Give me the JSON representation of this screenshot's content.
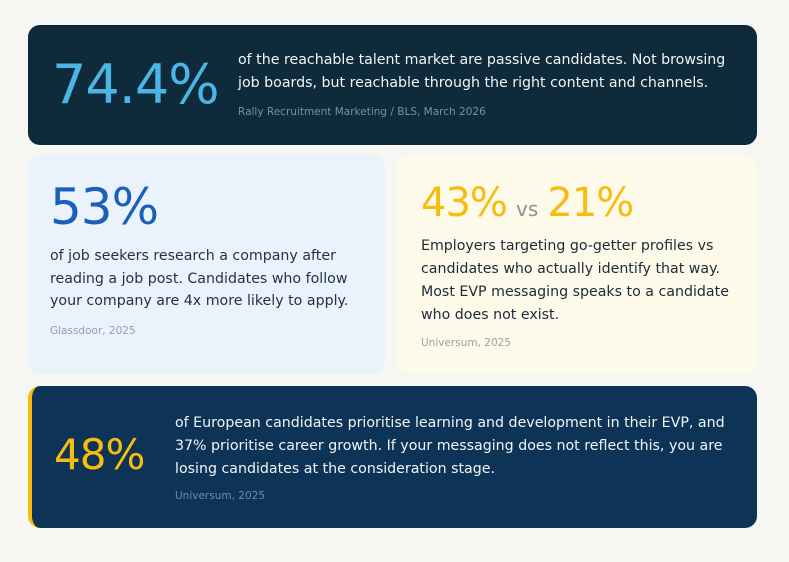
{
  "stats": [
    {
      "value": "74.4%",
      "description": "of the reachable talent market are passive candidates. Not browsing job boards, but reachable through the right content and channels.",
      "source": "Rally Recruitment Marketing / BLS, March 2026"
    },
    {
      "value": "53%",
      "description": "of job seekers research a company after reading a job post. Candidates who follow your company are 4x more likely to apply.",
      "source": "Glassdoor, 2025"
    },
    {
      "value_a": "43%",
      "vs_label": "vs",
      "value_b": "21%",
      "description": "Employers targeting go-getter profiles vs candidates who actually identify that way. Most EVP messaging speaks to a candidate who does not exist.",
      "source": "Universum, 2025"
    },
    {
      "value": "48%",
      "description": "of European candidates prioritise learning and development in their EVP, and 37% prioritise career growth. If your messaging does not reflect this, you are losing candidates at the consideration stage.",
      "source": "Universum, 2025"
    }
  ],
  "colors": {
    "page_background": "#f6f6f3",
    "dark_card": "#0f2a3a",
    "light_blue_accent": "#49b6e5",
    "blue_card": "#eaf3fb",
    "blue_stat": "#1a5fb8",
    "cream_card": "#fdfaea",
    "yellow_accent": "#f6bd10",
    "navy_card": "#0d3456"
  }
}
